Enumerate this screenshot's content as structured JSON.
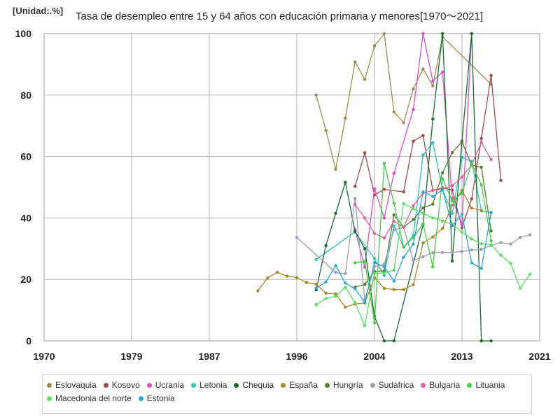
{
  "header": {
    "unit": "[Unidad:.%]",
    "title": "Tasa de desempleo entre 15 y 64 años con educación primaria y menores[1970～2021]"
  },
  "chart_data": {
    "type": "line",
    "title": "Tasa de desempleo entre 15 y 64 años con educación primaria y menores[1970～2021]",
    "unit": "[Unidad:.%]",
    "xlim": [
      1970,
      2021
    ],
    "ylim": [
      0,
      100
    ],
    "x_ticks": [
      1970,
      1979,
      1987,
      1996,
      2004,
      2013,
      2021
    ],
    "y_ticks": [
      0,
      20,
      40,
      60,
      80,
      100
    ],
    "grid": true,
    "legend_position": "bottom",
    "series": [
      {
        "name": "Eslovaquia",
        "color": "#a08c50",
        "points": [
          [
            1998,
            80
          ],
          [
            1999,
            68.5
          ],
          [
            2000,
            55.8
          ],
          [
            2001,
            72.5
          ],
          [
            2002,
            90.8
          ],
          [
            2003,
            85.1
          ],
          [
            2004,
            96
          ],
          [
            2005,
            100
          ],
          [
            2006,
            74.5
          ],
          [
            2007,
            71
          ],
          [
            2008,
            82
          ],
          [
            2009,
            88.5
          ],
          [
            2010,
            83
          ],
          [
            2011,
            99
          ],
          [
            2016,
            83.5
          ]
        ]
      },
      {
        "name": "Kosovo",
        "color": "#a04a48",
        "points": [
          [
            2002,
            50.3
          ],
          [
            2003,
            61.2
          ],
          [
            2004,
            47.5
          ],
          [
            2005,
            49.3
          ],
          [
            2007,
            48.5
          ],
          [
            2008,
            65
          ],
          [
            2009,
            66.8
          ],
          [
            2010,
            49
          ],
          [
            2011,
            49.8
          ],
          [
            2012,
            49.1
          ],
          [
            2013,
            36.8
          ],
          [
            2014,
            46.2
          ],
          [
            2015,
            65.9
          ],
          [
            2016,
            86.4
          ],
          [
            2017,
            52.2
          ]
        ]
      },
      {
        "name": "Ucrania",
        "color": "#d84fc8",
        "points": [
          [
            2002,
            36.2
          ],
          [
            2003,
            24
          ],
          [
            2004,
            49.5
          ],
          [
            2005,
            40
          ],
          [
            2006,
            54.5
          ],
          [
            2008,
            75.3
          ],
          [
            2009,
            100
          ],
          [
            2010,
            84.5
          ],
          [
            2011,
            87.5
          ],
          [
            2012,
            46.3
          ],
          [
            2013,
            38
          ],
          [
            2014,
            100
          ]
        ]
      },
      {
        "name": "Letonia",
        "color": "#2ec4b4",
        "points": [
          [
            1998,
            26.5
          ],
          [
            2002,
            35.5
          ],
          [
            2004,
            26.8
          ],
          [
            2005,
            21.3
          ],
          [
            2006,
            37.5
          ],
          [
            2007,
            30.5
          ],
          [
            2008,
            34.4
          ],
          [
            2009,
            60.5
          ],
          [
            2010,
            64.5
          ],
          [
            2011,
            49.2
          ],
          [
            2012,
            41.5
          ],
          [
            2013,
            59.7
          ],
          [
            2014,
            58.4
          ],
          [
            2015,
            42.3
          ],
          [
            2016,
            41.8
          ]
        ]
      },
      {
        "name": "Chequia",
        "color": "#1a6b2e",
        "points": [
          [
            1998,
            16.6
          ],
          [
            1999,
            31
          ],
          [
            2000,
            41.5
          ],
          [
            2001,
            51.6
          ],
          [
            2002,
            35.6
          ],
          [
            2003,
            30
          ],
          [
            2004,
            8
          ],
          [
            2005,
            0
          ],
          [
            2006,
            0
          ],
          [
            2009,
            37.8
          ],
          [
            2010,
            72.2
          ],
          [
            2011,
            100
          ],
          [
            2012,
            26
          ],
          [
            2013,
            65
          ],
          [
            2014,
            100
          ],
          [
            2015,
            0
          ],
          [
            2016,
            0
          ]
        ]
      },
      {
        "name": "España",
        "color": "#a88a2e",
        "points": [
          [
            1992,
            16.3
          ],
          [
            1993,
            20.5
          ],
          [
            1994,
            22.3
          ],
          [
            1995,
            21.1
          ],
          [
            1996,
            20.6
          ],
          [
            1997,
            19
          ],
          [
            1998,
            18.5
          ],
          [
            1999,
            15.5
          ],
          [
            2000,
            15.3
          ],
          [
            2001,
            11
          ],
          [
            2002,
            12
          ],
          [
            2003,
            12.3
          ],
          [
            2004,
            20.6
          ],
          [
            2005,
            17.1
          ],
          [
            2006,
            16.7
          ],
          [
            2007,
            16.7
          ],
          [
            2008,
            18.3
          ],
          [
            2009,
            31.9
          ],
          [
            2010,
            33.8
          ],
          [
            2011,
            36.6
          ],
          [
            2012,
            44.2
          ],
          [
            2013,
            49
          ],
          [
            2014,
            43.2
          ],
          [
            2015,
            42.5
          ]
        ]
      },
      {
        "name": "Hungría",
        "color": "#5a7a2c",
        "points": [
          [
            2002,
            17.5
          ],
          [
            2003,
            18.4
          ],
          [
            2004,
            22.6
          ],
          [
            2005,
            22.8
          ],
          [
            2006,
            41
          ],
          [
            2007,
            37
          ],
          [
            2008,
            39.5
          ],
          [
            2009,
            43.3
          ],
          [
            2010,
            44.5
          ],
          [
            2011,
            54.7
          ],
          [
            2012,
            61.3
          ],
          [
            2013,
            64.8
          ],
          [
            2014,
            57.2
          ],
          [
            2015,
            56.5
          ],
          [
            2016,
            35.8
          ]
        ]
      },
      {
        "name": "Sudáfrica",
        "color": "#9aa0b0",
        "points": [
          [
            1996,
            33.7
          ],
          [
            2000,
            22.3
          ],
          [
            2001,
            21.9
          ],
          [
            2002,
            46.3
          ],
          [
            2003,
            13.3
          ],
          [
            2004,
            24.2
          ],
          [
            2005,
            25
          ],
          [
            2006,
            36.1
          ],
          [
            2007,
            37
          ],
          [
            2008,
            26.2
          ],
          [
            2009,
            27.4
          ],
          [
            2010,
            28.7
          ],
          [
            2011,
            28.8
          ],
          [
            2012,
            28.8
          ],
          [
            2013,
            29.1
          ],
          [
            2014,
            29.6
          ],
          [
            2015,
            29.8
          ],
          [
            2016,
            31
          ],
          [
            2017,
            32
          ],
          [
            2018,
            31.5
          ],
          [
            2019,
            33.7
          ],
          [
            2020,
            34.5
          ]
        ]
      },
      {
        "name": "Bulgaria",
        "color": "#e0609a",
        "points": [
          [
            2002,
            44.4
          ],
          [
            2003,
            40
          ],
          [
            2004,
            35
          ],
          [
            2005,
            33.5
          ],
          [
            2006,
            38.9
          ],
          [
            2007,
            37
          ],
          [
            2008,
            44
          ],
          [
            2009,
            48.2
          ],
          [
            2010,
            48.9
          ],
          [
            2011,
            49.5
          ],
          [
            2012,
            50.5
          ],
          [
            2013,
            53.3
          ],
          [
            2014,
            57.3
          ],
          [
            2015,
            64.6
          ],
          [
            2016,
            59
          ]
        ]
      },
      {
        "name": "Lituania",
        "color": "#46cc4a",
        "points": [
          [
            2002,
            25.4
          ],
          [
            2003,
            25.8
          ],
          [
            2004,
            5.9
          ],
          [
            2005,
            57.8
          ],
          [
            2006,
            44.8
          ],
          [
            2007,
            30.5
          ],
          [
            2008,
            33.6
          ],
          [
            2009,
            38.1
          ],
          [
            2010,
            24.1
          ],
          [
            2011,
            52.7
          ],
          [
            2012,
            45.5
          ],
          [
            2013,
            48
          ],
          [
            2014,
            57.7
          ],
          [
            2015,
            50.8
          ],
          [
            2016,
            32.5
          ]
        ]
      },
      {
        "name": "Macedonia del norte",
        "color": "#58e060",
        "points": [
          [
            1998,
            11.8
          ],
          [
            1999,
            13.8
          ],
          [
            2000,
            14.5
          ],
          [
            2001,
            17.4
          ],
          [
            2002,
            12.5
          ],
          [
            2003,
            5
          ],
          [
            2004,
            22
          ],
          [
            2005,
            22.1
          ],
          [
            2006,
            23
          ],
          [
            2007,
            44.7
          ],
          [
            2008,
            43
          ],
          [
            2009,
            41.5
          ],
          [
            2010,
            40
          ],
          [
            2011,
            39
          ],
          [
            2012,
            38
          ],
          [
            2013,
            35.4
          ],
          [
            2014,
            33.2
          ],
          [
            2015,
            31.6
          ],
          [
            2016,
            31.3
          ],
          [
            2017,
            27.9
          ],
          [
            2018,
            25.2
          ],
          [
            2019,
            17.2
          ],
          [
            2020,
            21.7
          ]
        ]
      },
      {
        "name": "Estonia",
        "color": "#2aa6d8",
        "points": [
          [
            1998,
            17.2
          ],
          [
            1999,
            19.2
          ],
          [
            2000,
            24.5
          ],
          [
            2001,
            18.8
          ],
          [
            2002,
            17
          ],
          [
            2003,
            12.5
          ],
          [
            2004,
            25.5
          ],
          [
            2005,
            24.1
          ],
          [
            2006,
            19.5
          ],
          [
            2007,
            27.2
          ],
          [
            2008,
            31.5
          ],
          [
            2009,
            48.5
          ],
          [
            2010,
            47
          ],
          [
            2011,
            49.2
          ],
          [
            2012,
            37.5
          ],
          [
            2013,
            41.2
          ],
          [
            2014,
            25.4
          ],
          [
            2015,
            23.6
          ],
          [
            2016,
            41.7
          ]
        ]
      }
    ]
  }
}
